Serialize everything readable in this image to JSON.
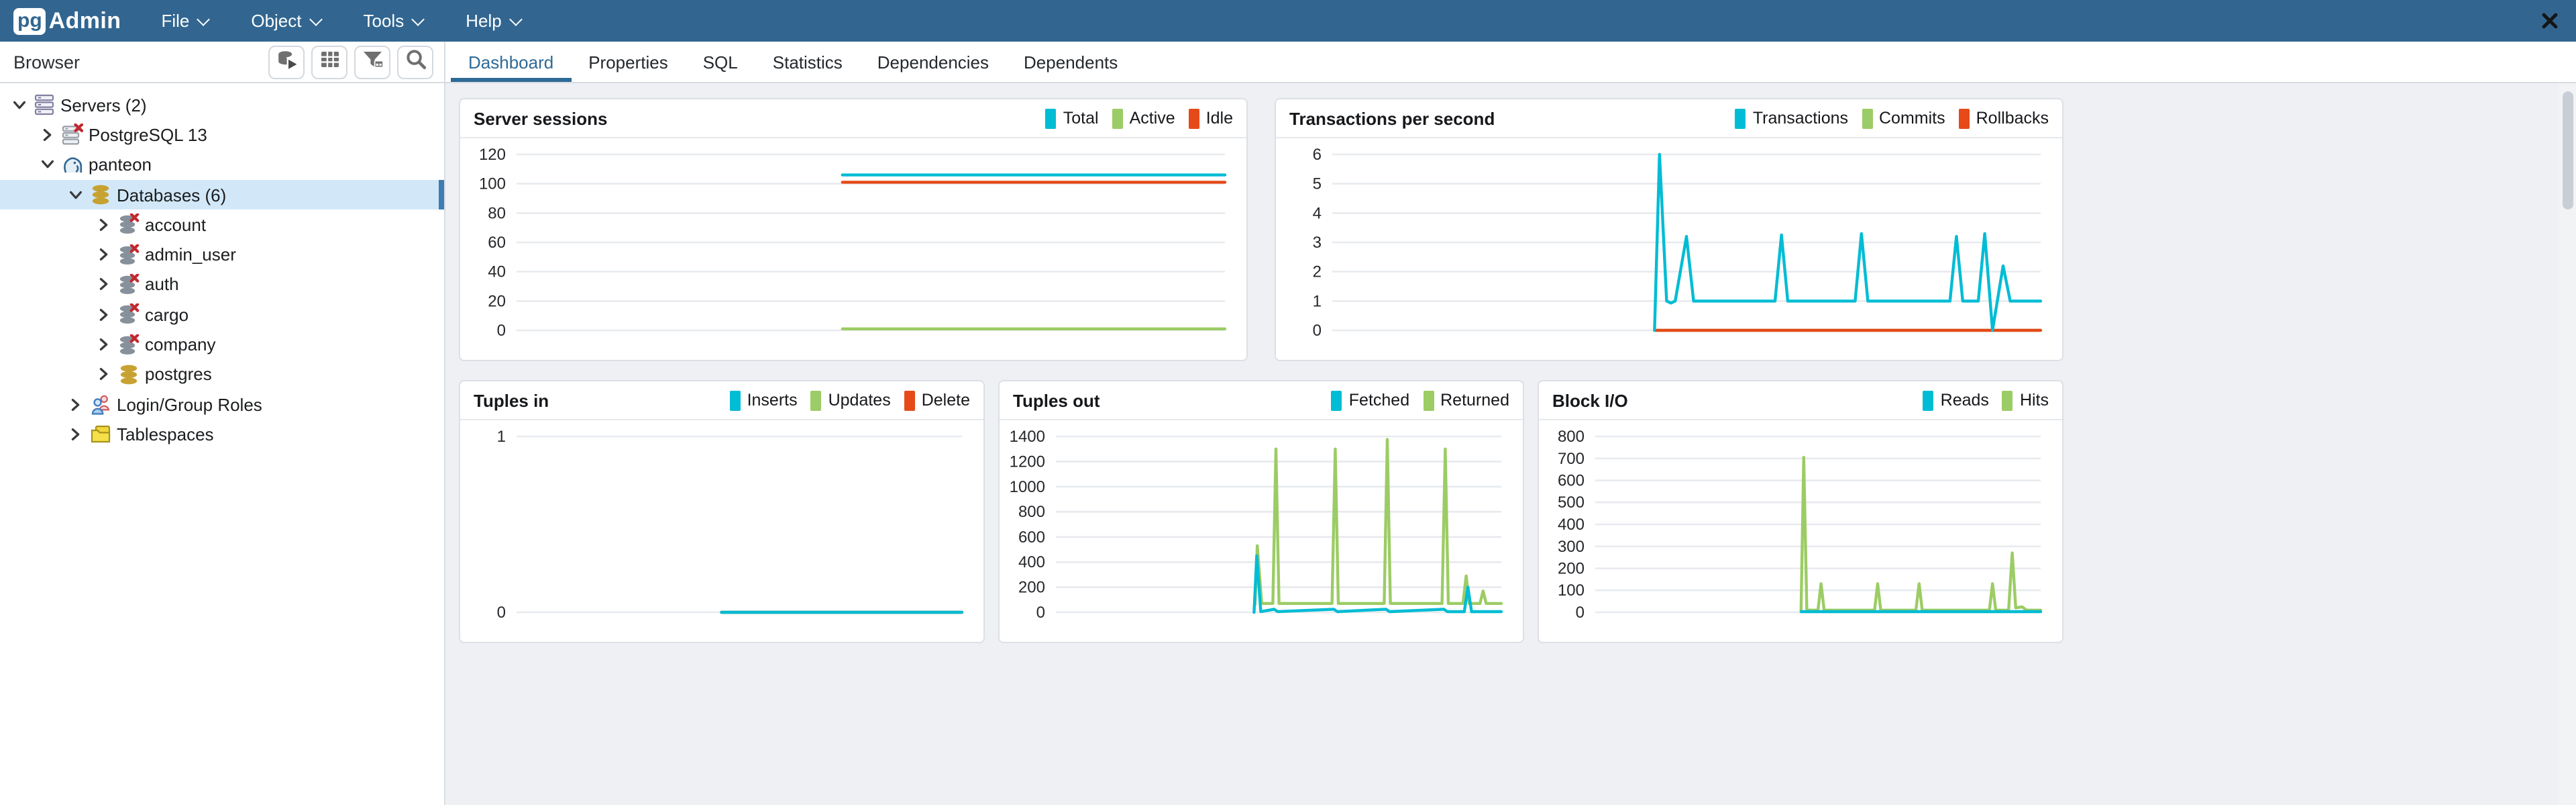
{
  "app": {
    "logo_pg": "pg",
    "logo_admin": "Admin"
  },
  "navbar": {
    "menus": [
      {
        "label": "File"
      },
      {
        "label": "Object"
      },
      {
        "label": "Tools"
      },
      {
        "label": "Help"
      }
    ]
  },
  "browser_panel": {
    "title": "Browser",
    "toolbar": [
      {
        "icon": "database-connect-icon",
        "label": "database"
      },
      {
        "icon": "grid-icon",
        "label": "grid"
      },
      {
        "icon": "filter-icon",
        "label": "filter"
      },
      {
        "icon": "search-icon",
        "label": "search"
      }
    ]
  },
  "sidebar": {
    "tree": [
      {
        "label": "Servers (2)",
        "level": 0,
        "chevron": "down",
        "icon": "servers",
        "selected": false
      },
      {
        "label": "PostgreSQL 13",
        "level": 1,
        "chevron": "right",
        "icon": "server-x",
        "selected": false
      },
      {
        "label": "panteon",
        "level": 1,
        "chevron": "down",
        "icon": "elephant",
        "selected": false
      },
      {
        "label": "Databases (6)",
        "level": 2,
        "chevron": "down",
        "icon": "db-gold",
        "selected": true
      },
      {
        "label": "account",
        "level": 3,
        "chevron": "right",
        "icon": "db-gray-x",
        "selected": false
      },
      {
        "label": "admin_user",
        "level": 3,
        "chevron": "right",
        "icon": "db-gray-x",
        "selected": false
      },
      {
        "label": "auth",
        "level": 3,
        "chevron": "right",
        "icon": "db-gray-x",
        "selected": false
      },
      {
        "label": "cargo",
        "level": 3,
        "chevron": "right",
        "icon": "db-gray-x",
        "selected": false
      },
      {
        "label": "company",
        "level": 3,
        "chevron": "right",
        "icon": "db-gray-x",
        "selected": false
      },
      {
        "label": "postgres",
        "level": 3,
        "chevron": "right",
        "icon": "db-gold",
        "selected": false
      },
      {
        "label": "Login/Group Roles",
        "level": 2,
        "chevron": "right",
        "icon": "people",
        "selected": false
      },
      {
        "label": "Tablespaces",
        "level": 2,
        "chevron": "right",
        "icon": "folder",
        "selected": false
      }
    ]
  },
  "tabs": {
    "items": [
      {
        "label": "Dashboard",
        "active": true
      },
      {
        "label": "Properties",
        "active": false
      },
      {
        "label": "SQL",
        "active": false
      },
      {
        "label": "Statistics",
        "active": false
      },
      {
        "label": "Dependencies",
        "active": false
      },
      {
        "label": "Dependents",
        "active": false
      }
    ],
    "close_icon": "close"
  },
  "colors": {
    "navbar_blue": "#326690",
    "active_tab_blue": "#2e6a96",
    "selection_blue": "#d2e8f8",
    "cyan": "#00BCD4",
    "green": "#9CCC65",
    "red": "#E64A19",
    "grid_line": "#e7eaee",
    "main_bg": "#eef0f4"
  },
  "chart_data": [
    {
      "type": "line",
      "title": "Server sessions",
      "ylim": [
        0,
        120
      ],
      "yticks": [
        0,
        20,
        40,
        60,
        80,
        100,
        120
      ],
      "grid": true,
      "legend_position": "top-right",
      "legend": [
        {
          "label": "Total",
          "color": "#00BCD4"
        },
        {
          "label": "Active",
          "color": "#9CCC65"
        },
        {
          "label": "Idle",
          "color": "#E64A19"
        }
      ],
      "series": [
        {
          "name": "Active",
          "color": "#9CCC65",
          "points": [
            [
              0.46,
              1
            ],
            [
              1,
              1
            ]
          ]
        },
        {
          "name": "Idle",
          "color": "#E64A19",
          "points": [
            [
              0.46,
              101
            ],
            [
              1,
              101
            ]
          ]
        },
        {
          "name": "Total",
          "color": "#00BCD4",
          "points": [
            [
              0.46,
              106
            ],
            [
              1,
              106
            ]
          ]
        }
      ]
    },
    {
      "type": "line",
      "title": "Transactions per second",
      "ylim": [
        0,
        6
      ],
      "yticks": [
        0,
        1,
        2,
        3,
        4,
        5,
        6
      ],
      "grid": true,
      "legend_position": "top-right",
      "legend": [
        {
          "label": "Transactions",
          "color": "#00BCD4"
        },
        {
          "label": "Commits",
          "color": "#9CCC65"
        },
        {
          "label": "Rollbacks",
          "color": "#E64A19"
        }
      ],
      "series": [
        {
          "name": "Commits",
          "color": "#9CCC65",
          "points": [
            [
              0.455,
              0
            ],
            [
              1,
              0
            ]
          ]
        },
        {
          "name": "Rollbacks",
          "color": "#E64A19",
          "points": [
            [
              0.455,
              0
            ],
            [
              1,
              0
            ]
          ]
        },
        {
          "name": "Transactions",
          "color": "#00BCD4",
          "points": [
            [
              0.455,
              0
            ],
            [
              0.462,
              6
            ],
            [
              0.472,
              1
            ],
            [
              0.478,
              0.93
            ],
            [
              0.484,
              1
            ],
            [
              0.5,
              3.2
            ],
            [
              0.51,
              1
            ],
            [
              0.625,
              1
            ],
            [
              0.634,
              3.25
            ],
            [
              0.643,
              1
            ],
            [
              0.738,
              1
            ],
            [
              0.747,
              3.3
            ],
            [
              0.756,
              1
            ],
            [
              0.872,
              1
            ],
            [
              0.881,
              3.2
            ],
            [
              0.89,
              1
            ],
            [
              0.912,
              1
            ],
            [
              0.921,
              3.3
            ],
            [
              0.932,
              0
            ],
            [
              0.947,
              2.2
            ],
            [
              0.957,
              1
            ],
            [
              1,
              1
            ]
          ]
        }
      ]
    },
    {
      "type": "line",
      "title": "Tuples in",
      "ylim": [
        0,
        1
      ],
      "yticks": [
        0,
        1
      ],
      "grid": true,
      "legend_position": "top-right",
      "legend": [
        {
          "label": "Inserts",
          "color": "#00BCD4"
        },
        {
          "label": "Updates",
          "color": "#9CCC65"
        },
        {
          "label": "Delete",
          "color": "#E64A19"
        }
      ],
      "series": [
        {
          "name": "Updates",
          "color": "#9CCC65",
          "points": [
            [
              0.46,
              0
            ],
            [
              1,
              0
            ]
          ]
        },
        {
          "name": "Delete",
          "color": "#E64A19",
          "points": [
            [
              0.46,
              0
            ],
            [
              1,
              0
            ]
          ]
        },
        {
          "name": "Inserts",
          "color": "#00BCD4",
          "points": [
            [
              0.46,
              0
            ],
            [
              1,
              0
            ]
          ]
        }
      ]
    },
    {
      "type": "line",
      "title": "Tuples out",
      "ylim": [
        0,
        1400
      ],
      "yticks": [
        0,
        200,
        400,
        600,
        800,
        1000,
        1200,
        1400
      ],
      "grid": true,
      "legend_position": "top-right",
      "legend": [
        {
          "label": "Fetched",
          "color": "#00BCD4"
        },
        {
          "label": "Returned",
          "color": "#9CCC65"
        }
      ],
      "series": [
        {
          "name": "Returned",
          "color": "#9CCC65",
          "points": [
            [
              0.447,
              60
            ],
            [
              0.452,
              530
            ],
            [
              0.462,
              70
            ],
            [
              0.487,
              70
            ],
            [
              0.494,
              1300
            ],
            [
              0.501,
              70
            ],
            [
              0.62,
              70
            ],
            [
              0.627,
              1300
            ],
            [
              0.634,
              70
            ],
            [
              0.737,
              70
            ],
            [
              0.744,
              1375
            ],
            [
              0.751,
              70
            ],
            [
              0.867,
              70
            ],
            [
              0.874,
              1300
            ],
            [
              0.881,
              70
            ],
            [
              0.914,
              70
            ],
            [
              0.921,
              290
            ],
            [
              0.928,
              70
            ],
            [
              0.952,
              70
            ],
            [
              0.959,
              170
            ],
            [
              0.966,
              70
            ],
            [
              1,
              70
            ]
          ]
        },
        {
          "name": "Fetched",
          "color": "#00BCD4",
          "points": [
            [
              0.445,
              0
            ],
            [
              0.451,
              450
            ],
            [
              0.46,
              5
            ],
            [
              0.49,
              25
            ],
            [
              0.498,
              5
            ],
            [
              0.624,
              25
            ],
            [
              0.632,
              5
            ],
            [
              0.741,
              25
            ],
            [
              0.749,
              5
            ],
            [
              0.871,
              25
            ],
            [
              0.879,
              5
            ],
            [
              0.917,
              5
            ],
            [
              0.925,
              200
            ],
            [
              0.933,
              5
            ],
            [
              1,
              5
            ]
          ]
        }
      ]
    },
    {
      "type": "line",
      "title": "Block I/O",
      "ylim": [
        0,
        800
      ],
      "yticks": [
        0,
        100,
        200,
        300,
        400,
        500,
        600,
        700,
        800
      ],
      "grid": true,
      "legend_position": "top-right",
      "legend": [
        {
          "label": "Reads",
          "color": "#00BCD4"
        },
        {
          "label": "Hits",
          "color": "#9CCC65"
        }
      ],
      "series": [
        {
          "name": "Hits",
          "color": "#9CCC65",
          "points": [
            [
              0.462,
              10
            ],
            [
              0.468,
              705
            ],
            [
              0.475,
              10
            ],
            [
              0.5,
              10
            ],
            [
              0.507,
              130
            ],
            [
              0.514,
              10
            ],
            [
              0.627,
              10
            ],
            [
              0.634,
              130
            ],
            [
              0.641,
              10
            ],
            [
              0.72,
              10
            ],
            [
              0.727,
              130
            ],
            [
              0.734,
              10
            ],
            [
              0.885,
              10
            ],
            [
              0.892,
              130
            ],
            [
              0.899,
              10
            ],
            [
              0.928,
              10
            ],
            [
              0.936,
              270
            ],
            [
              0.944,
              20
            ],
            [
              0.958,
              25
            ],
            [
              0.968,
              10
            ],
            [
              1,
              10
            ]
          ]
        },
        {
          "name": "Reads",
          "color": "#00BCD4",
          "points": [
            [
              0.462,
              3
            ],
            [
              1,
              3
            ]
          ]
        }
      ]
    }
  ]
}
